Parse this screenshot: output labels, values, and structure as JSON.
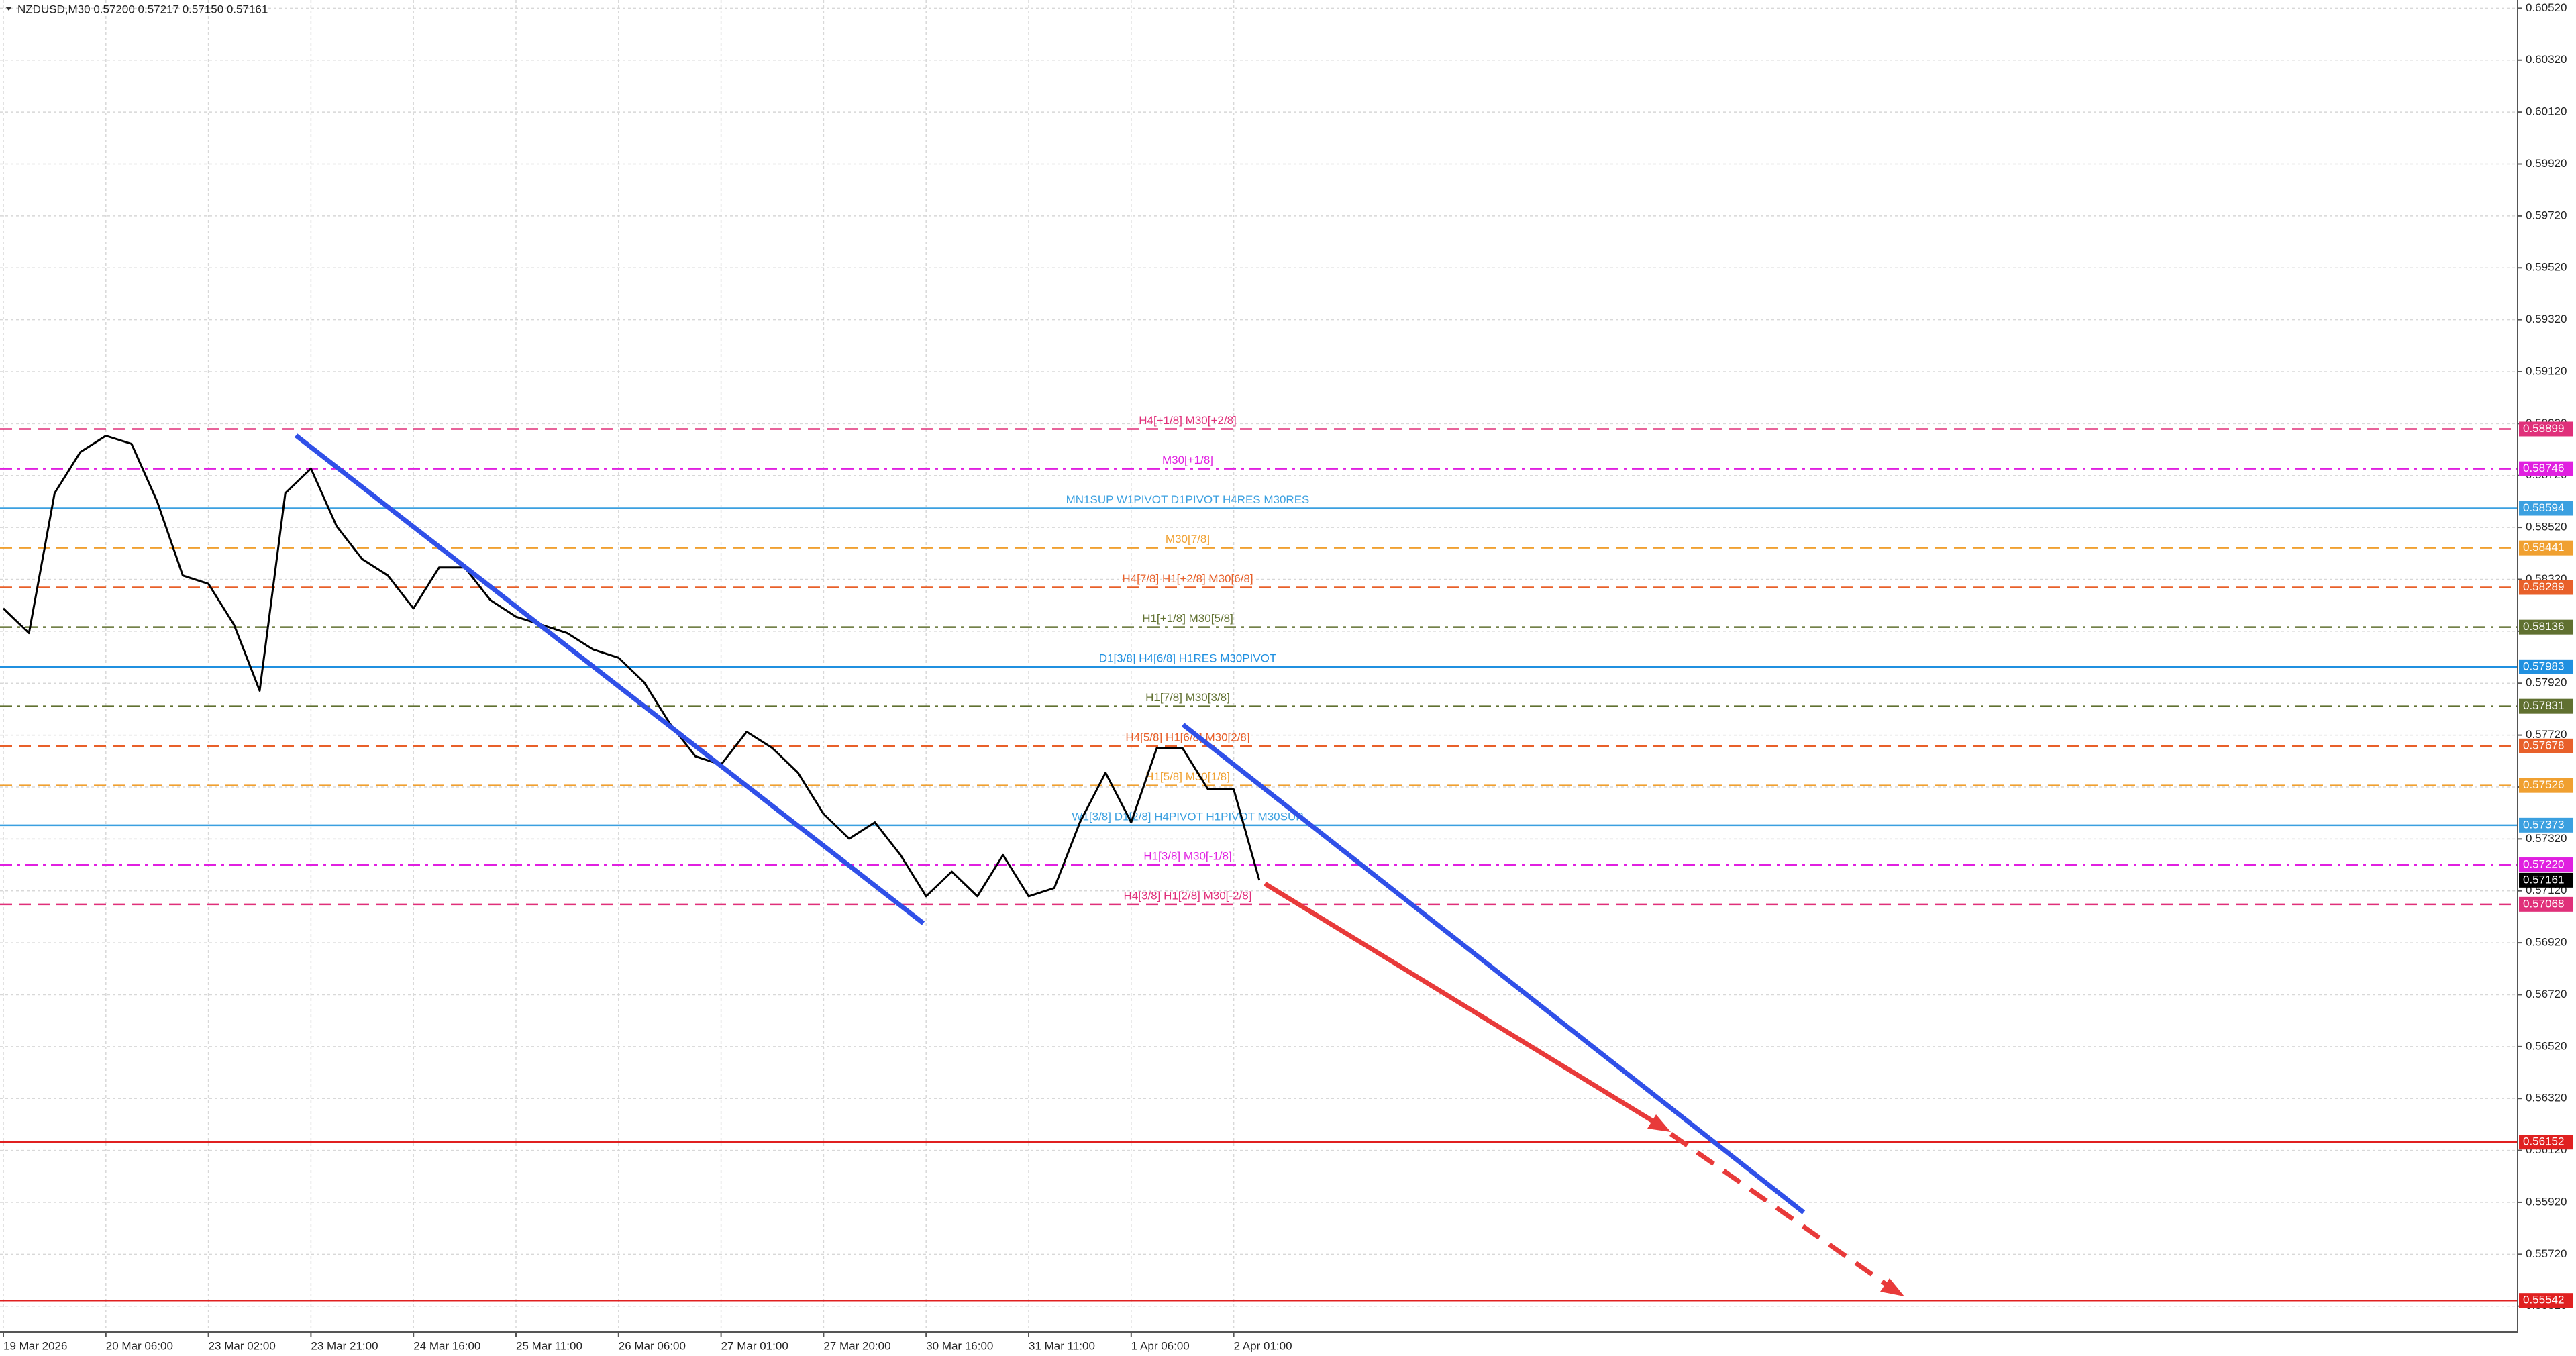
{
  "chart_data": {
    "type": "line",
    "title": "NZDUSD,M30  0.57200 0.57217 0.57150 0.57161",
    "color": "#000000",
    "categories": [
      "19 Mar 2026",
      null,
      null,
      null,
      "20 Mar 06:00",
      null,
      null,
      null,
      "23 Mar 02:00",
      null,
      null,
      null,
      "23 Mar 21:00",
      null,
      null,
      null,
      "24 Mar 16:00",
      null,
      null,
      null,
      "25 Mar 11:00",
      null,
      null,
      null,
      "26 Mar 06:00",
      null,
      null,
      null,
      "27 Mar 01:00",
      null,
      null,
      null,
      "27 Mar 20:00",
      null,
      null,
      null,
      "30 Mar 16:00",
      null,
      null,
      null,
      "31 Mar 11:00",
      null,
      null,
      null,
      "1 Apr 06:00",
      null,
      null,
      null,
      "2 Apr 01:00",
      null
    ],
    "values": [
      0.58208,
      0.58113,
      0.58652,
      0.5881,
      0.58873,
      0.58842,
      0.5862,
      0.58335,
      0.58303,
      0.58145,
      0.57891,
      0.58652,
      0.58747,
      0.58525,
      0.58398,
      0.58335,
      0.58208,
      0.58366,
      0.58366,
      0.5824,
      0.58176,
      0.58145,
      0.58113,
      0.5805,
      0.58018,
      0.57923,
      0.57765,
      0.57638,
      0.57606,
      0.57733,
      0.5767,
      0.57575,
      0.57416,
      0.57321,
      0.57384,
      0.57258,
      0.57099,
      0.57194,
      0.57099,
      0.57258,
      0.57099,
      0.57131,
      0.57384,
      0.57575,
      0.57384,
      0.5767,
      0.5767,
      0.57511,
      0.57511,
      0.57161
    ],
    "ylim": [
      0.55421,
      0.60552
    ],
    "yticks": [
      {
        "value": 0.6052,
        "label": "0.60520"
      },
      {
        "value": 0.6032,
        "label": "0.60320"
      },
      {
        "value": 0.6012,
        "label": "0.60120"
      },
      {
        "value": 0.5992,
        "label": "0.59920"
      },
      {
        "value": 0.5972,
        "label": "0.59720"
      },
      {
        "value": 0.5952,
        "label": "0.59520"
      },
      {
        "value": 0.5932,
        "label": "0.59320"
      },
      {
        "value": 0.5912,
        "label": "0.59120"
      },
      {
        "value": 0.5892,
        "label": "0.58920"
      },
      {
        "value": 0.5872,
        "label": "0.58720"
      },
      {
        "value": 0.5852,
        "label": "0.58520"
      },
      {
        "value": 0.5832,
        "label": "0.58320"
      },
      {
        "value": 0.5812,
        "label": "0.58120"
      },
      {
        "value": 0.5792,
        "label": "0.57920"
      },
      {
        "value": 0.5772,
        "label": "0.57720"
      },
      {
        "value": 0.5752,
        "label": "0.57520"
      },
      {
        "value": 0.5732,
        "label": "0.57320"
      },
      {
        "value": 0.5712,
        "label": "0.57120"
      },
      {
        "value": 0.5692,
        "label": "0.56920"
      },
      {
        "value": 0.5672,
        "label": "0.56720"
      },
      {
        "value": 0.5652,
        "label": "0.56520"
      },
      {
        "value": 0.5632,
        "label": "0.56320"
      },
      {
        "value": 0.5612,
        "label": "0.56120"
      },
      {
        "value": 0.5592,
        "label": "0.55920"
      },
      {
        "value": 0.5572,
        "label": "0.55720"
      },
      {
        "value": 0.5552,
        "label": "0.55520"
      }
    ],
    "grid": true,
    "levels": [
      {
        "label": "H4[+1/8] M30[+2/8]",
        "value": 0.58899,
        "color": "#e0307a",
        "style": "dash"
      },
      {
        "label": "M30[+1/8]",
        "value": 0.58746,
        "color": "#e020e0",
        "style": "dashdot"
      },
      {
        "label": "MN1SUP W1PIVOT D1PIVOT H4RES M30RES",
        "value": 0.58594,
        "color": "#3ba0e0",
        "style": "solid"
      },
      {
        "label": "M30[7/8]",
        "value": 0.58441,
        "color": "#f0a030",
        "style": "dash"
      },
      {
        "label": "H4[7/8] H1[+2/8] M30[6/8]",
        "value": 0.58289,
        "color": "#e8602a",
        "style": "dash"
      },
      {
        "label": "H1[+1/8] M30[5/8]",
        "value": 0.58136,
        "color": "#607030",
        "style": "dashdot"
      },
      {
        "label": "D1[3/8] H4[6/8] H1RES M30PIVOT",
        "value": 0.57983,
        "color": "#2090e0",
        "style": "solid"
      },
      {
        "label": "H1[7/8] M30[3/8]",
        "value": 0.57831,
        "color": "#607030",
        "style": "dashdot"
      },
      {
        "label": "H4[5/8] H1[6/8] M30[2/8]",
        "value": 0.57678,
        "color": "#e8602a",
        "style": "dash"
      },
      {
        "label": "H1[5/8] M30[1/8]",
        "value": 0.57526,
        "color": "#f0a030",
        "style": "dash"
      },
      {
        "label": "W1[3/8] D1[2/8] H4PIVOT H1PIVOT M30SUP",
        "value": 0.57373,
        "color": "#3ba0e0",
        "style": "solid"
      },
      {
        "label": "H1[3/8] M30[-1/8]",
        "value": 0.5722,
        "value_label": "0.57220",
        "color": "#e020e0",
        "style": "dashdot"
      },
      {
        "label": "H4[3/8] H1[2/8] M30[-2/8]",
        "value": 0.57068,
        "color": "#e0307a",
        "style": "dash"
      },
      {
        "value": 0.56152,
        "color": "#e02020",
        "style": "solid"
      },
      {
        "value": 0.55542,
        "color": "#e02020",
        "style": "solid"
      }
    ],
    "current_price": {
      "value": 0.57161,
      "color": "#000000"
    }
  }
}
